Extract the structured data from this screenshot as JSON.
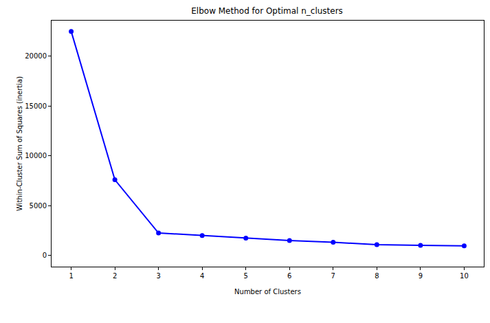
{
  "chart_data": {
    "type": "line",
    "title": "Elbow Method for Optimal n_clusters",
    "x_label": "Number of Clusters",
    "y_label": "Within-Cluster Sum of Squares (inertia)",
    "x": [
      1,
      2,
      3,
      4,
      5,
      6,
      7,
      8,
      9,
      10
    ],
    "values": [
      22500,
      7600,
      2250,
      2000,
      1730,
      1500,
      1320,
      1080,
      1010,
      950
    ],
    "color": "#0000ff",
    "marker": "circle",
    "line_style": "solid",
    "xlim": [
      0.55,
      10.45
    ],
    "xticks": [
      1,
      2,
      3,
      4,
      5,
      6,
      7,
      8,
      9,
      10
    ],
    "ylim": [
      -1130,
      23580
    ],
    "yticks": [
      0,
      5000,
      10000,
      15000,
      20000
    ],
    "grid": false
  }
}
